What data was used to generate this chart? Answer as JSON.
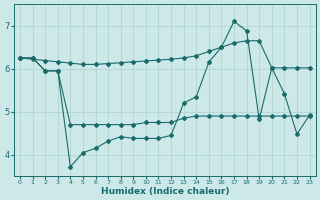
{
  "xlabel": "Humidex (Indice chaleur)",
  "line_color": "#1a6b6b",
  "bg_color": "#cde8e8",
  "grid_color": "#aed0d0",
  "series1_x": [
    0,
    1,
    2,
    3,
    4,
    5,
    6,
    7,
    8,
    9,
    10,
    11,
    12,
    13,
    14,
    15,
    16,
    17,
    18,
    19,
    20,
    21,
    22,
    23
  ],
  "series1_y": [
    6.25,
    6.25,
    5.95,
    5.95,
    4.7,
    4.7,
    4.7,
    4.7,
    4.7,
    4.7,
    4.75,
    4.75,
    4.75,
    4.85,
    4.9,
    4.9,
    4.9,
    4.9,
    4.9,
    4.9,
    4.9,
    4.9,
    4.9,
    4.9
  ],
  "series2_x": [
    0,
    1,
    2,
    3,
    4,
    5,
    6,
    7,
    8,
    9,
    10,
    11,
    12,
    13,
    14,
    15,
    16,
    17,
    18,
    19,
    20,
    21,
    22,
    23
  ],
  "series2_y": [
    6.25,
    6.25,
    5.95,
    5.95,
    3.72,
    4.05,
    4.15,
    4.32,
    4.42,
    4.38,
    4.38,
    4.38,
    4.45,
    5.2,
    5.35,
    6.15,
    6.5,
    7.1,
    6.88,
    4.82,
    6.02,
    5.42,
    4.48,
    4.92
  ],
  "series3_x": [
    0,
    1,
    2,
    3,
    4,
    5,
    6,
    7,
    8,
    9,
    10,
    11,
    12,
    13,
    14,
    15,
    16,
    17,
    18,
    19,
    20,
    21,
    22,
    23
  ],
  "series3_y": [
    6.25,
    6.22,
    6.19,
    6.16,
    6.13,
    6.1,
    6.1,
    6.12,
    6.14,
    6.16,
    6.18,
    6.2,
    6.22,
    6.25,
    6.3,
    6.4,
    6.5,
    6.6,
    6.65,
    6.65,
    6.02,
    6.02,
    6.02,
    6.02
  ],
  "ylim": [
    3.5,
    7.5
  ],
  "xlim": [
    -0.5,
    23.5
  ],
  "yticks": [
    4,
    5,
    6,
    7
  ],
  "xticks": [
    0,
    1,
    2,
    3,
    4,
    5,
    6,
    7,
    8,
    9,
    10,
    11,
    12,
    13,
    14,
    15,
    16,
    17,
    18,
    19,
    20,
    21,
    22,
    23
  ]
}
